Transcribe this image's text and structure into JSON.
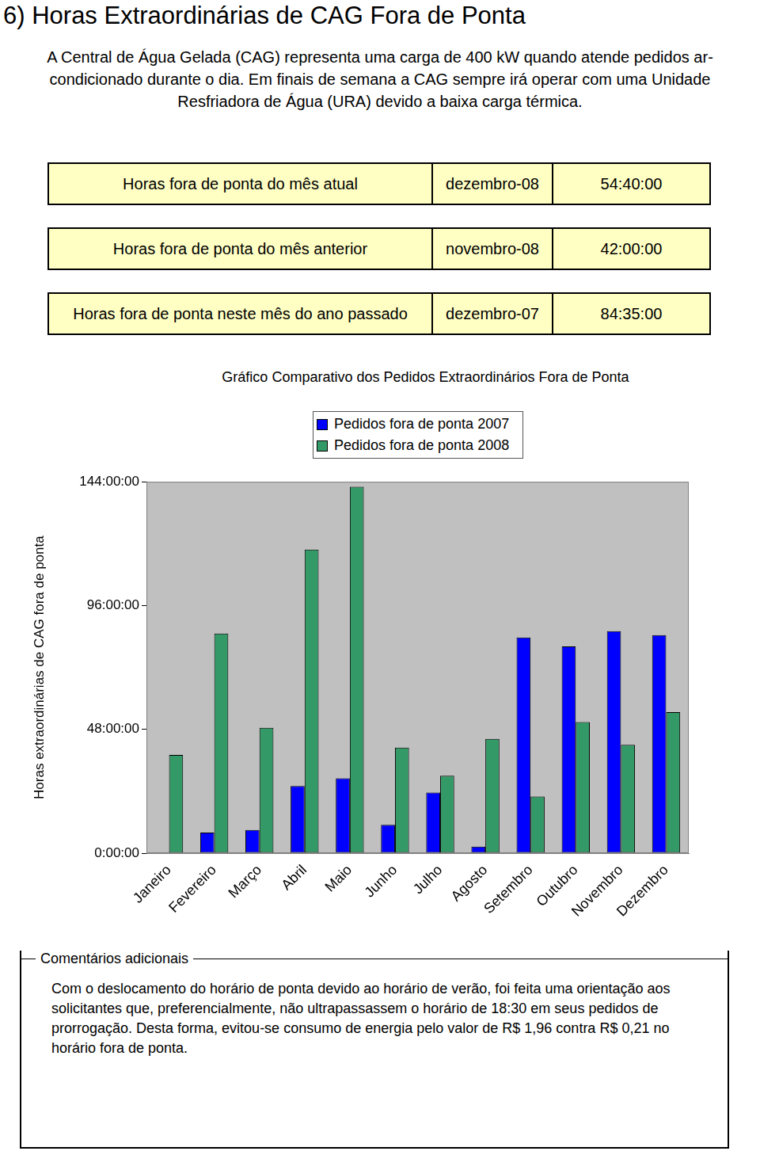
{
  "header": {
    "title": "6) Horas Extraordinárias de CAG Fora de Ponta",
    "intro": "A Central de Água Gelada (CAG) representa uma carga de 400 kW quando atende pedidos ar-condicionado durante o dia. Em finais de semana a CAG sempre irá operar com uma Unidade Resfriadora de Água (URA) devido a baixa carga térmica."
  },
  "summary_rows": [
    [
      "Horas fora de ponta do mês atual",
      "dezembro-08",
      "54:40:00"
    ],
    [
      "Horas fora de ponta do mês anterior",
      "novembro-08",
      "42:00:00"
    ],
    [
      "Horas fora de ponta neste mês do ano passado",
      "dezembro-07",
      "84:35:00"
    ]
  ],
  "chart_data": {
    "type": "bar",
    "title": "Gráfico Comparativo dos Pedidos Extraordinários Fora de Ponta",
    "y_label": "Horas extraordinárias de CAG fora de ponta",
    "categories": [
      "Janeiro",
      "Fevereiro",
      "Março",
      "Abril",
      "Maio",
      "Junho",
      "Julho",
      "Agosto",
      "Setembro",
      "Outubro",
      "Novembro",
      "Dezembro"
    ],
    "series": [
      {
        "name": "Pedidos fora de ponta 2007",
        "color": "#0000ff",
        "values": [
          null,
          8,
          9,
          26,
          29,
          11,
          23.5,
          2.5,
          83.6,
          80.2,
          86.1,
          84.58
        ]
      },
      {
        "name": "Pedidos fora de ponta 2008",
        "color": "#339966",
        "values": [
          38.1,
          85.2,
          48.6,
          117.7,
          142.1,
          40.9,
          30,
          44.3,
          22,
          50.8,
          42,
          54.67
        ]
      }
    ],
    "ylim": [
      0,
      144
    ],
    "yticks": [
      {
        "value": 0,
        "label": "0:00:00"
      },
      {
        "value": 48,
        "label": "48:00:00"
      },
      {
        "value": 96,
        "label": "96:00:00"
      },
      {
        "value": 144,
        "label": "144:00:00"
      }
    ],
    "grid": false,
    "legend": "top"
  },
  "comments": {
    "title": "Comentários adicionais",
    "text": "Com o deslocamento do horário de ponta devido ao horário de verão, foi feita uma orientação aos solicitantes que, preferencialmente, não ultrapassassem o horário de 18:30 em seus pedidos de prorrogação. Desta forma, evitou-se consumo de energia pelo valor de R$ 1,96 contra R$ 0,21 no horário fora de ponta."
  }
}
